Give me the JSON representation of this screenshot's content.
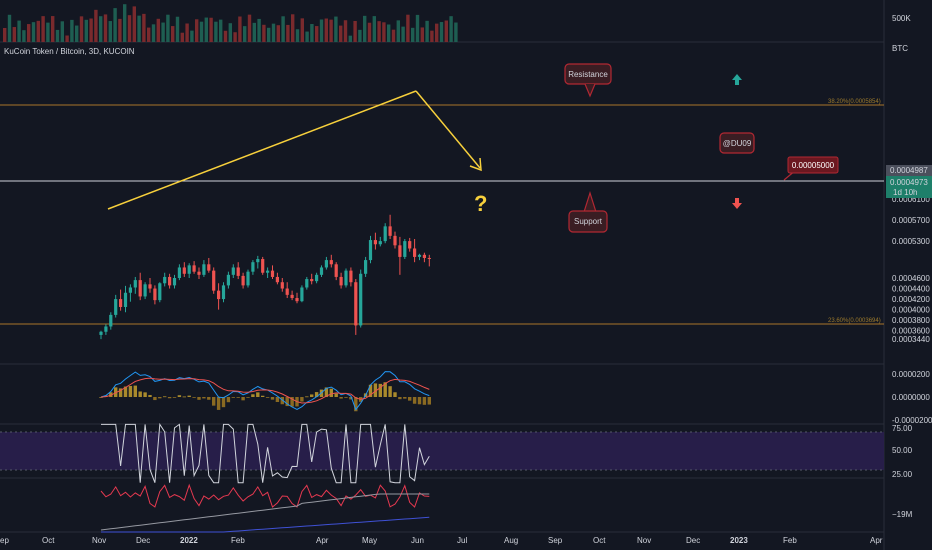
{
  "header": {
    "symbol_title": "KuCoin Token / Bitcoin, 3D, KUCOIN",
    "volume_axis_label": "500K",
    "price_currency": "BTC"
  },
  "price_axis": {
    "ticks": [
      "0.0006100",
      "0.0005700",
      "0.0005300",
      "0.0004600",
      "0.0004400",
      "0.0004200",
      "0.0004000",
      "0.0003800",
      "0.0003600",
      "0.0003440"
    ],
    "last_price_tag": "0.0004987",
    "current_price_tag": "0.0004973",
    "countdown": "1d 10h"
  },
  "macd_axis": {
    "ticks": [
      "0.0000200",
      "0.0000000",
      "-0.0000200"
    ]
  },
  "rsi_axis": {
    "ticks": [
      "75.00",
      "50.00",
      "25.00"
    ]
  },
  "obv_axis": {
    "ticks": [
      "−19M"
    ]
  },
  "time_axis": {
    "labels": [
      "ep",
      "Oct",
      "Nov",
      "Dec",
      "2022",
      "Feb",
      "Apr",
      "May",
      "Jun",
      "Jul",
      "Aug",
      "Sep",
      "Oct",
      "Nov",
      "Dec",
      "2023",
      "Feb",
      "Apr"
    ]
  },
  "annotations": {
    "resistance": "Resistance",
    "support": "Support",
    "author": "@DU09",
    "price_level": "0.00005000",
    "question": "?",
    "fib_top": "38.20%(0.0005854)",
    "fib_bottom": "23.60%(0.0003694)"
  },
  "colors": {
    "background": "#131722",
    "up": "#26a69a",
    "down": "#ef5350",
    "trendline": "#f7d03c",
    "fib": "#a9762a",
    "rsi_band": "#7e57c2",
    "callout_border": "#b22833",
    "callout_fill": "#3a1d23"
  },
  "chart_data": {
    "type": "candlestick",
    "x_axis": "date",
    "y_axis_unit": "BTC",
    "y_range": [
      0.000344,
      0.00062
    ],
    "horizontal_levels": [
      0.0005854,
      0.0004987,
      0.0003694
    ],
    "candles": [
      {
        "date": "2021-11-09",
        "o": 0.000352,
        "h": 0.00036,
        "l": 0.000344,
        "c": 0.000358
      },
      {
        "date": "2021-11-12",
        "o": 0.000358,
        "h": 0.000372,
        "l": 0.000352,
        "c": 0.000368
      },
      {
        "date": "2021-11-15",
        "o": 0.000368,
        "h": 0.000395,
        "l": 0.000362,
        "c": 0.00039
      },
      {
        "date": "2021-11-18",
        "o": 0.00039,
        "h": 0.000428,
        "l": 0.000385,
        "c": 0.00042
      },
      {
        "date": "2021-11-21",
        "o": 0.00042,
        "h": 0.000438,
        "l": 0.000398,
        "c": 0.000405
      },
      {
        "date": "2021-11-24",
        "o": 0.000405,
        "h": 0.000445,
        "l": 0.000395,
        "c": 0.000432
      },
      {
        "date": "2021-11-27",
        "o": 0.000432,
        "h": 0.000448,
        "l": 0.000415,
        "c": 0.000442
      },
      {
        "date": "2021-11-30",
        "o": 0.000442,
        "h": 0.000462,
        "l": 0.00043,
        "c": 0.000456
      },
      {
        "date": "2021-12-03",
        "o": 0.000456,
        "h": 0.00047,
        "l": 0.000418,
        "c": 0.000425
      },
      {
        "date": "2021-12-06",
        "o": 0.000425,
        "h": 0.000452,
        "l": 0.00042,
        "c": 0.000448
      },
      {
        "date": "2021-12-09",
        "o": 0.000448,
        "h": 0.00046,
        "l": 0.000432,
        "c": 0.00044
      },
      {
        "date": "2021-12-12",
        "o": 0.00044,
        "h": 0.000446,
        "l": 0.00041,
        "c": 0.000418
      },
      {
        "date": "2021-12-15",
        "o": 0.000418,
        "h": 0.000452,
        "l": 0.000414,
        "c": 0.00045
      },
      {
        "date": "2021-12-18",
        "o": 0.00045,
        "h": 0.00047,
        "l": 0.000444,
        "c": 0.000462
      },
      {
        "date": "2021-12-21",
        "o": 0.000462,
        "h": 0.000468,
        "l": 0.00044,
        "c": 0.000446
      },
      {
        "date": "2021-12-24",
        "o": 0.000446,
        "h": 0.000466,
        "l": 0.00044,
        "c": 0.00046
      },
      {
        "date": "2021-12-27",
        "o": 0.00046,
        "h": 0.000486,
        "l": 0.000456,
        "c": 0.00048
      },
      {
        "date": "2021-12-30",
        "o": 0.00048,
        "h": 0.00049,
        "l": 0.000462,
        "c": 0.000468
      },
      {
        "date": "2022-01-02",
        "o": 0.000468,
        "h": 0.000488,
        "l": 0.00046,
        "c": 0.000484
      },
      {
        "date": "2022-01-05",
        "o": 0.000484,
        "h": 0.000492,
        "l": 0.000468,
        "c": 0.000472
      },
      {
        "date": "2022-01-08",
        "o": 0.000472,
        "h": 0.00048,
        "l": 0.000458,
        "c": 0.000466
      },
      {
        "date": "2022-01-11",
        "o": 0.000466,
        "h": 0.000494,
        "l": 0.000462,
        "c": 0.000486
      },
      {
        "date": "2022-01-14",
        "o": 0.000486,
        "h": 0.000498,
        "l": 0.00047,
        "c": 0.000474
      },
      {
        "date": "2022-01-17",
        "o": 0.000474,
        "h": 0.00048,
        "l": 0.00043,
        "c": 0.000436
      },
      {
        "date": "2022-01-20",
        "o": 0.000436,
        "h": 0.00045,
        "l": 0.0004,
        "c": 0.00042
      },
      {
        "date": "2022-01-23",
        "o": 0.00042,
        "h": 0.000452,
        "l": 0.000414,
        "c": 0.000446
      },
      {
        "date": "2022-01-26",
        "o": 0.000446,
        "h": 0.000472,
        "l": 0.00044,
        "c": 0.000466
      },
      {
        "date": "2022-01-29",
        "o": 0.000466,
        "h": 0.000486,
        "l": 0.00046,
        "c": 0.00048
      },
      {
        "date": "2022-02-01",
        "o": 0.00048,
        "h": 0.00049,
        "l": 0.000458,
        "c": 0.000464
      },
      {
        "date": "2022-02-04",
        "o": 0.000464,
        "h": 0.00047,
        "l": 0.00044,
        "c": 0.000446
      },
      {
        "date": "2022-02-07",
        "o": 0.000446,
        "h": 0.000476,
        "l": 0.000442,
        "c": 0.000472
      },
      {
        "date": "2022-02-10",
        "o": 0.000472,
        "h": 0.000494,
        "l": 0.000466,
        "c": 0.00049
      },
      {
        "date": "2022-02-13",
        "o": 0.00049,
        "h": 0.000502,
        "l": 0.000478,
        "c": 0.000496
      },
      {
        "date": "2022-02-16",
        "o": 0.000496,
        "h": 0.0005,
        "l": 0.000466,
        "c": 0.00047
      },
      {
        "date": "2022-02-19",
        "o": 0.00047,
        "h": 0.00048,
        "l": 0.00046,
        "c": 0.000474
      },
      {
        "date": "2022-02-22",
        "o": 0.000474,
        "h": 0.000484,
        "l": 0.000458,
        "c": 0.000462
      },
      {
        "date": "2022-02-25",
        "o": 0.000462,
        "h": 0.00047,
        "l": 0.000448,
        "c": 0.000452
      },
      {
        "date": "2022-02-28",
        "o": 0.000452,
        "h": 0.00046,
        "l": 0.000434,
        "c": 0.00044
      },
      {
        "date": "2022-03-03",
        "o": 0.00044,
        "h": 0.000452,
        "l": 0.000422,
        "c": 0.000428
      },
      {
        "date": "2022-03-06",
        "o": 0.000428,
        "h": 0.000436,
        "l": 0.000418,
        "c": 0.000422
      },
      {
        "date": "2022-03-09",
        "o": 0.000422,
        "h": 0.000432,
        "l": 0.000412,
        "c": 0.000416
      },
      {
        "date": "2022-03-12",
        "o": 0.000416,
        "h": 0.000446,
        "l": 0.000414,
        "c": 0.000442
      },
      {
        "date": "2022-03-15",
        "o": 0.000442,
        "h": 0.000462,
        "l": 0.000438,
        "c": 0.000458
      },
      {
        "date": "2022-03-18",
        "o": 0.000458,
        "h": 0.000468,
        "l": 0.000448,
        "c": 0.000454
      },
      {
        "date": "2022-03-21",
        "o": 0.000454,
        "h": 0.00047,
        "l": 0.00045,
        "c": 0.000466
      },
      {
        "date": "2022-03-24",
        "o": 0.000466,
        "h": 0.000484,
        "l": 0.000462,
        "c": 0.00048
      },
      {
        "date": "2022-03-27",
        "o": 0.00048,
        "h": 0.0005,
        "l": 0.000476,
        "c": 0.000494
      },
      {
        "date": "2022-03-30",
        "o": 0.000494,
        "h": 0.000504,
        "l": 0.00048,
        "c": 0.000486
      },
      {
        "date": "2022-04-02",
        "o": 0.000486,
        "h": 0.00049,
        "l": 0.000456,
        "c": 0.000462
      },
      {
        "date": "2022-04-05",
        "o": 0.000462,
        "h": 0.00047,
        "l": 0.00044,
        "c": 0.000446
      },
      {
        "date": "2022-04-08",
        "o": 0.000446,
        "h": 0.000478,
        "l": 0.000442,
        "c": 0.000474
      },
      {
        "date": "2022-04-11",
        "o": 0.000474,
        "h": 0.00048,
        "l": 0.000444,
        "c": 0.000452
      },
      {
        "date": "2022-04-14",
        "o": 0.000452,
        "h": 0.000458,
        "l": 0.000352,
        "c": 0.00037
      },
      {
        "date": "2022-04-17",
        "o": 0.00037,
        "h": 0.000476,
        "l": 0.000366,
        "c": 0.000468
      },
      {
        "date": "2022-04-20",
        "o": 0.000468,
        "h": 0.0005,
        "l": 0.000462,
        "c": 0.000494
      },
      {
        "date": "2022-04-23",
        "o": 0.000494,
        "h": 0.00054,
        "l": 0.000488,
        "c": 0.000532
      },
      {
        "date": "2022-04-26",
        "o": 0.000532,
        "h": 0.000546,
        "l": 0.000514,
        "c": 0.000524
      },
      {
        "date": "2022-04-29",
        "o": 0.000524,
        "h": 0.000538,
        "l": 0.00052,
        "c": 0.00053
      },
      {
        "date": "2022-05-02",
        "o": 0.00053,
        "h": 0.000564,
        "l": 0.000526,
        "c": 0.000558
      },
      {
        "date": "2022-05-05",
        "o": 0.000558,
        "h": 0.00058,
        "l": 0.000534,
        "c": 0.00054
      },
      {
        "date": "2022-05-08",
        "o": 0.00054,
        "h": 0.000548,
        "l": 0.000516,
        "c": 0.000522
      },
      {
        "date": "2022-05-11",
        "o": 0.000522,
        "h": 0.000538,
        "l": 0.000466,
        "c": 0.0005
      },
      {
        "date": "2022-05-14",
        "o": 0.0005,
        "h": 0.000534,
        "l": 0.000496,
        "c": 0.00053
      },
      {
        "date": "2022-05-17",
        "o": 0.00053,
        "h": 0.000536,
        "l": 0.00051,
        "c": 0.000516
      },
      {
        "date": "2022-05-20",
        "o": 0.000516,
        "h": 0.000534,
        "l": 0.00049,
        "c": 0.0005
      },
      {
        "date": "2022-05-23",
        "o": 0.0005,
        "h": 0.000506,
        "l": 0.000494,
        "c": 0.000504
      },
      {
        "date": "2022-05-26",
        "o": 0.000504,
        "h": 0.000508,
        "l": 0.00049,
        "c": 0.000498
      },
      {
        "date": "2022-05-29",
        "o": 0.000498,
        "h": 0.000504,
        "l": 0.000482,
        "c": 0.000497
      }
    ]
  }
}
